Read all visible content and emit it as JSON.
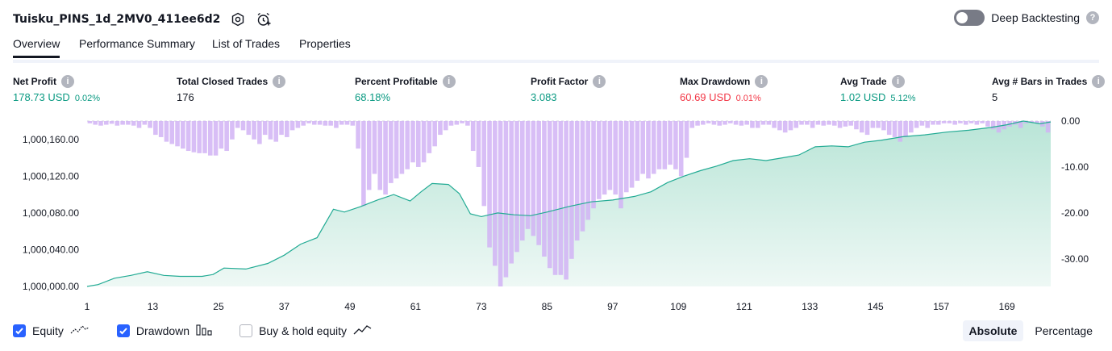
{
  "header": {
    "title": "Tuisku_PINS_1d_2MV0_411ee6d2",
    "settings_icon": "hexagon-gear-icon",
    "alert_icon": "alarm-plus-icon"
  },
  "deep_backtesting": {
    "label": "Deep Backtesting",
    "enabled": false
  },
  "tabs": [
    {
      "label": "Overview",
      "active": true
    },
    {
      "label": "Performance Summary",
      "active": false
    },
    {
      "label": "List of Trades",
      "active": false
    },
    {
      "label": "Properties",
      "active": false
    }
  ],
  "metrics": {
    "net_profit": {
      "label": "Net Profit",
      "value": "178.73 USD",
      "pct": "0.02%"
    },
    "total_closed_trades": {
      "label": "Total Closed Trades",
      "value": "176"
    },
    "percent_profitable": {
      "label": "Percent Profitable",
      "value": "68.18%"
    },
    "profit_factor": {
      "label": "Profit Factor",
      "value": "3.083"
    },
    "max_drawdown": {
      "label": "Max Drawdown",
      "value": "60.69 USD",
      "pct": "0.01%"
    },
    "avg_trade": {
      "label": "Avg Trade",
      "value": "1.02 USD",
      "pct": "5.12%"
    },
    "avg_bars": {
      "label": "Avg # Bars in Trades",
      "value": "5"
    }
  },
  "colors": {
    "positive": "#089981",
    "negative": "#f23645",
    "equity_line": "#22ab94",
    "equity_fill": "#c8ebe0",
    "drawdown_bar": "#d1b3f5",
    "accent": "#2962ff"
  },
  "chart_data": {
    "type": "area",
    "x_ticks": [
      "1",
      "13",
      "25",
      "37",
      "49",
      "61",
      "73",
      "85",
      "97",
      "109",
      "121",
      "133",
      "145",
      "157",
      "169"
    ],
    "x_range": [
      1,
      177
    ],
    "left_axis": {
      "ticks": [
        "1,000,160.00",
        "1,000,120.00",
        "1,000,080.00",
        "1,000,040.00",
        "1,000,000.00"
      ],
      "range": [
        1000000,
        1000180
      ]
    },
    "right_axis": {
      "ticks": [
        "0.00",
        "-10.00",
        "-20.00",
        "-30.00"
      ],
      "range": [
        -36,
        0
      ]
    },
    "series": [
      {
        "name": "Equity",
        "axis": "left",
        "points": [
          [
            1,
            1000000
          ],
          [
            3,
            1000002
          ],
          [
            6,
            1000009
          ],
          [
            9,
            1000012
          ],
          [
            12,
            1000016
          ],
          [
            15,
            1000012
          ],
          [
            18,
            1000011
          ],
          [
            22,
            1000011
          ],
          [
            24,
            1000013
          ],
          [
            26,
            1000020
          ],
          [
            30,
            1000019
          ],
          [
            34,
            1000025
          ],
          [
            37,
            1000034
          ],
          [
            40,
            1000046
          ],
          [
            43,
            1000053
          ],
          [
            46,
            1000084
          ],
          [
            48,
            1000081
          ],
          [
            51,
            1000087
          ],
          [
            54,
            1000094
          ],
          [
            57,
            1000100
          ],
          [
            60,
            1000093
          ],
          [
            62,
            1000103
          ],
          [
            64,
            1000112
          ],
          [
            67,
            1000111
          ],
          [
            69,
            1000101
          ],
          [
            71,
            1000079
          ],
          [
            73,
            1000076
          ],
          [
            76,
            1000080
          ],
          [
            79,
            1000078
          ],
          [
            82,
            1000077
          ],
          [
            85,
            1000081
          ],
          [
            89,
            1000087
          ],
          [
            93,
            1000092
          ],
          [
            97,
            1000094
          ],
          [
            101,
            1000098
          ],
          [
            104,
            1000103
          ],
          [
            107,
            1000113
          ],
          [
            110,
            1000120
          ],
          [
            113,
            1000126
          ],
          [
            116,
            1000131
          ],
          [
            119,
            1000137
          ],
          [
            122,
            1000139
          ],
          [
            125,
            1000137
          ],
          [
            128,
            1000140
          ],
          [
            131,
            1000143
          ],
          [
            134,
            1000152
          ],
          [
            137,
            1000153
          ],
          [
            140,
            1000152
          ],
          [
            143,
            1000157
          ],
          [
            146,
            1000159
          ],
          [
            150,
            1000163
          ],
          [
            154,
            1000165
          ],
          [
            158,
            1000168
          ],
          [
            162,
            1000170
          ],
          [
            166,
            1000173
          ],
          [
            169,
            1000176
          ],
          [
            172,
            1000180
          ],
          [
            175,
            1000177
          ],
          [
            177,
            1000179
          ]
        ]
      },
      {
        "name": "Drawdown",
        "axis": "right",
        "values": [
          -0.5,
          -0.8,
          -1.0,
          -0.8,
          -0.6,
          -1.0,
          -0.8,
          -0.8,
          -1.0,
          -1.5,
          -0.8,
          -1.5,
          -3,
          -3.5,
          -4.5,
          -5,
          -5.5,
          -6,
          -6.5,
          -6.8,
          -7,
          -7,
          -7.5,
          -7.5,
          -6,
          -6.5,
          -4,
          -1.5,
          -2,
          -3,
          -4,
          -5,
          -3,
          -4,
          -4.5,
          -3,
          -3.5,
          -2,
          -1.5,
          -1,
          -0.5,
          -0.8,
          -0.8,
          -1,
          -1,
          -1.5,
          -0.8,
          -0.8,
          -1,
          -6,
          -18.5,
          -15,
          -11.5,
          -15,
          -16,
          -13.5,
          -12.5,
          -11.5,
          -10.5,
          -9,
          -10,
          -9,
          -7,
          -5.5,
          -3,
          -2,
          -1,
          -0.8,
          -0.5,
          -1,
          -6.5,
          -10,
          -18.5,
          -27.5,
          -31.5,
          -36,
          -34,
          -31,
          -28.5,
          -26,
          -23.5,
          -25,
          -27,
          -29.5,
          -32,
          -33.5,
          -33.5,
          -34.5,
          -30,
          -26,
          -24,
          -21.5,
          -19,
          -17,
          -16,
          -15,
          -16,
          -19,
          -15.5,
          -14.5,
          -13,
          -11.5,
          -12.5,
          -11.5,
          -10.5,
          -10.5,
          -9.5,
          -10.5,
          -12,
          -8,
          -1.5,
          -1,
          -0.8,
          -0.5,
          -0.8,
          -1,
          -0.8,
          -0.5,
          -0.8,
          -1,
          -0.8,
          -1.5,
          -1.5,
          -0.8,
          -0.8,
          -1.5,
          -2,
          -2.5,
          -2,
          -1.5,
          -0.8,
          -0.8,
          -1.5,
          -0.8,
          -1,
          -0.8,
          -1,
          -1.5,
          -1.2,
          -1,
          -1.8,
          -2.5,
          -3,
          -1.5,
          -1.5,
          -2,
          -3,
          -3.5,
          -4.5,
          -3.5,
          -2.5,
          -1.5,
          -1,
          -1.5,
          -0.8,
          -0.8,
          -0.5,
          -0.5,
          -0.8,
          -0.5,
          -0.8,
          -0.5,
          -0.8,
          -0.5,
          -1.2,
          -1.8,
          -2.5,
          -1.8,
          -1.2,
          -0.8,
          -1.5,
          -0.5,
          -0.3,
          -0.5,
          -1.2,
          -2.5
        ]
      }
    ]
  },
  "legend": [
    {
      "label": "Equity",
      "checked": true,
      "icon": "equity-line-icon"
    },
    {
      "label": "Drawdown",
      "checked": true,
      "icon": "drawdown-bars-icon"
    },
    {
      "label": "Buy & hold equity",
      "checked": false,
      "icon": "buy-hold-line-icon"
    }
  ],
  "scale_toggle": {
    "absolute": "Absolute",
    "percentage": "Percentage",
    "selected": "Absolute"
  }
}
